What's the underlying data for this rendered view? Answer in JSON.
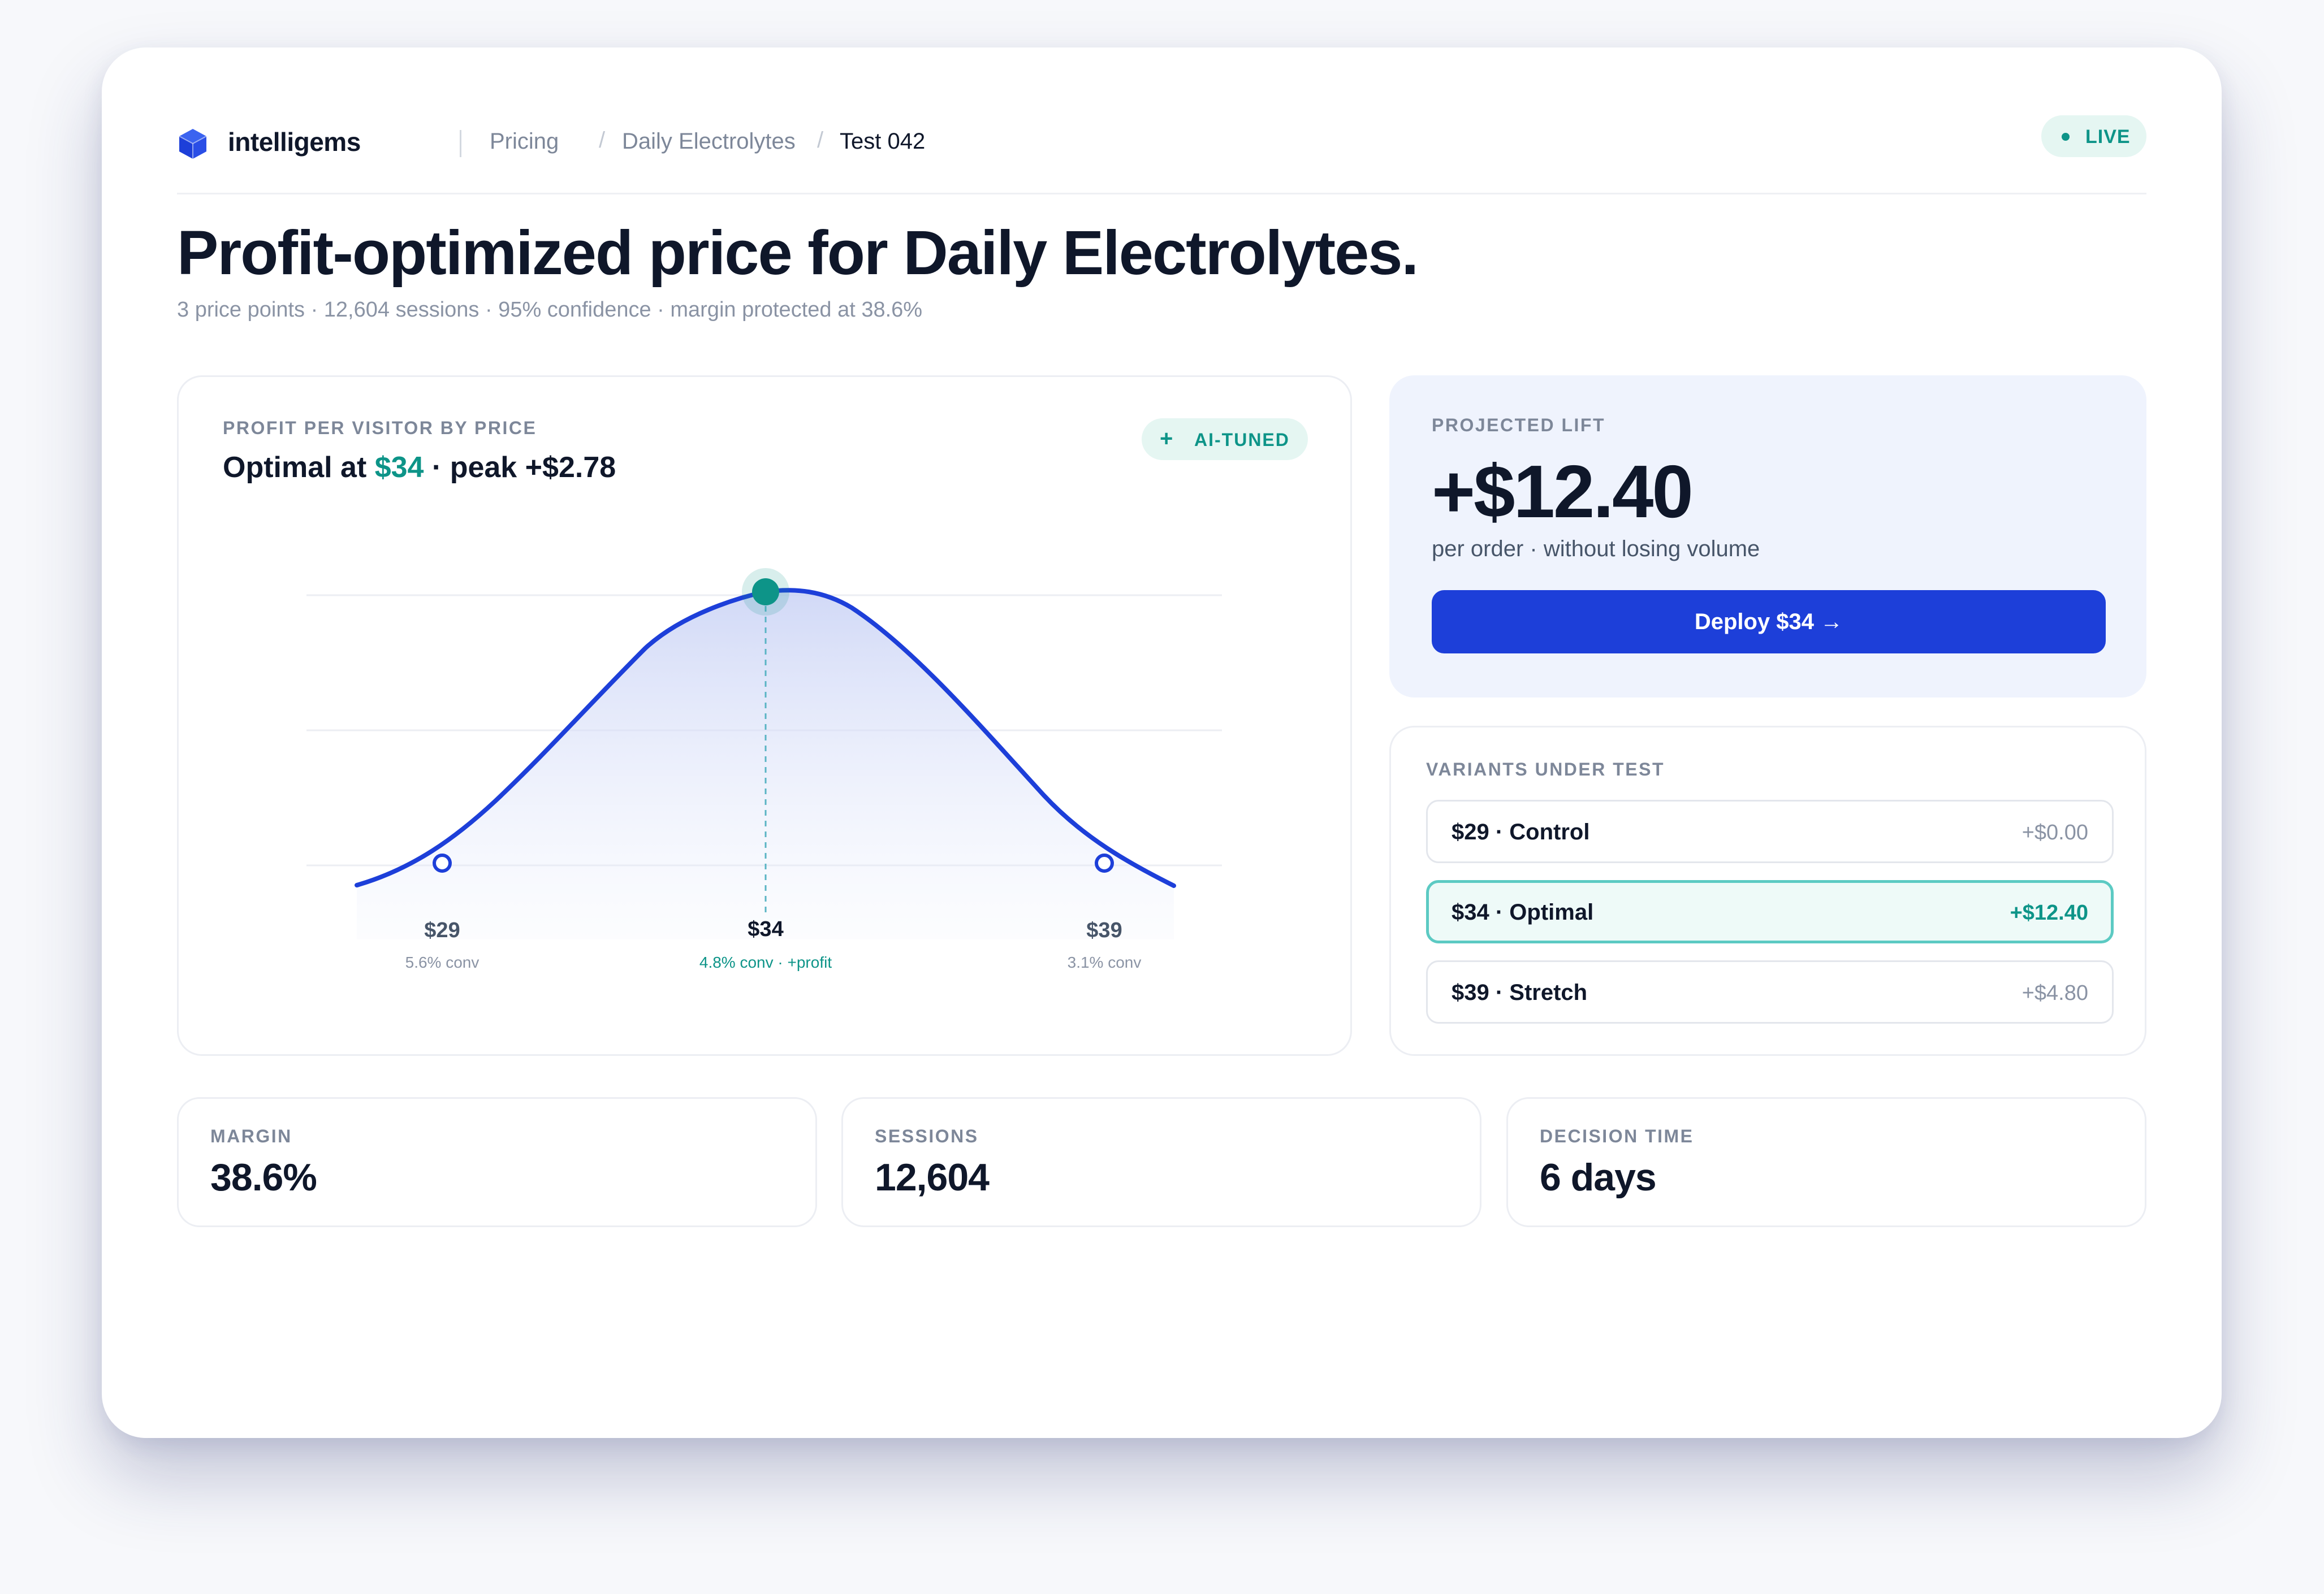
{
  "header": {
    "brand": "intelligems",
    "breadcrumb": [
      "Pricing",
      "Daily Electrolytes",
      "Test 042"
    ],
    "status": "LIVE"
  },
  "page": {
    "title": "Profit-optimized price for Daily Electrolytes.",
    "subtitle": "3 price points · 12,604 sessions · 95% confidence · margin protected at 38.6%"
  },
  "chart_card": {
    "label": "PROFIT PER VISITOR BY PRICE",
    "head_prefix": "Optimal at ",
    "head_price": "$34",
    "head_suffix": " · peak +$2.78",
    "badge": "AI-TUNED",
    "badge_icon": "sparkle-plus-icon"
  },
  "chart_data": {
    "type": "line",
    "title": "PROFIT PER VISITOR BY PRICE",
    "xlabel": "",
    "ylabel": "",
    "grid": true,
    "legend": "none",
    "curve_color": "#1d3fd9",
    "optimal_color": "#0d9488",
    "peak_value": 2.78,
    "points": [
      {
        "price": "$29",
        "conv": "5.6% conv",
        "optimal": false
      },
      {
        "price": "$34",
        "conv": "4.8% conv · +profit",
        "optimal": true
      },
      {
        "price": "$39",
        "conv": "3.1% conv",
        "optimal": false
      }
    ]
  },
  "lift": {
    "label": "PROJECTED LIFT",
    "value": "+$12.40",
    "note": "per order · without losing volume",
    "button": "Deploy $34 →"
  },
  "variants": {
    "label": "VARIANTS UNDER TEST",
    "items": [
      {
        "name": "$29 · Control",
        "delta": "+$0.00",
        "selected": false
      },
      {
        "name": "$34 · Optimal",
        "delta": "+$12.40",
        "selected": true
      },
      {
        "name": "$39 · Stretch",
        "delta": "+$4.80",
        "selected": false
      }
    ]
  },
  "stats": [
    {
      "label": "MARGIN",
      "value": "38.6%"
    },
    {
      "label": "SESSIONS",
      "value": "12,604"
    },
    {
      "label": "DECISION TIME",
      "value": "6 days"
    }
  ],
  "colors": {
    "accent": "#1d3fd9",
    "teal": "#0d9488",
    "text": "#0f172a",
    "muted": "#7d8799"
  }
}
